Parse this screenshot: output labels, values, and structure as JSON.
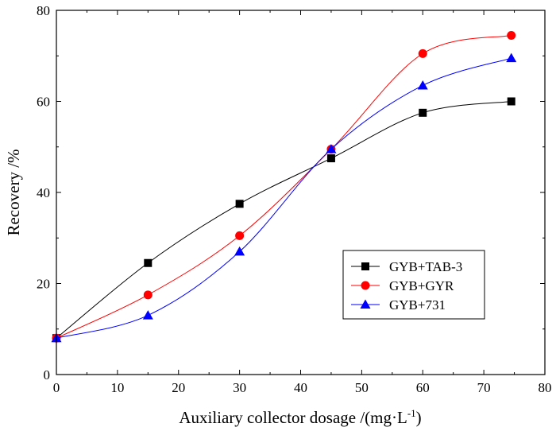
{
  "chart_data": {
    "type": "scatter",
    "title": "",
    "xlabel": "Auxiliary collector dosage /(mg·L",
    "xlabel_sup": "-1",
    "xlabel_suffix": ")",
    "ylabel": "Recovery /%",
    "xlim": [
      0,
      80
    ],
    "ylim": [
      0,
      80
    ],
    "x_ticks": [
      0,
      10,
      20,
      30,
      40,
      50,
      60,
      70,
      80
    ],
    "y_ticks": [
      0,
      20,
      40,
      60,
      80
    ],
    "grid": false,
    "legend_position": "lower-right",
    "fit_curves": true,
    "series": [
      {
        "name": "GYB+TAB-3",
        "color": "#000000",
        "marker": "square",
        "x": [
          0,
          15,
          30,
          45,
          60,
          74.5
        ],
        "y": [
          8,
          24.5,
          37.5,
          47.5,
          57.5,
          60
        ]
      },
      {
        "name": "GYB+GYR",
        "color": "#ff0000",
        "marker": "circle",
        "x": [
          0,
          15,
          30,
          45,
          60,
          74.5
        ],
        "y": [
          8,
          17.5,
          30.5,
          49.5,
          70.5,
          74.5
        ]
      },
      {
        "name": "GYB+731",
        "color": "#0000ff",
        "marker": "triangle",
        "x": [
          0,
          15,
          30,
          45,
          60,
          74.5
        ],
        "y": [
          8,
          13,
          27,
          49.5,
          63.5,
          69.5
        ]
      }
    ]
  }
}
